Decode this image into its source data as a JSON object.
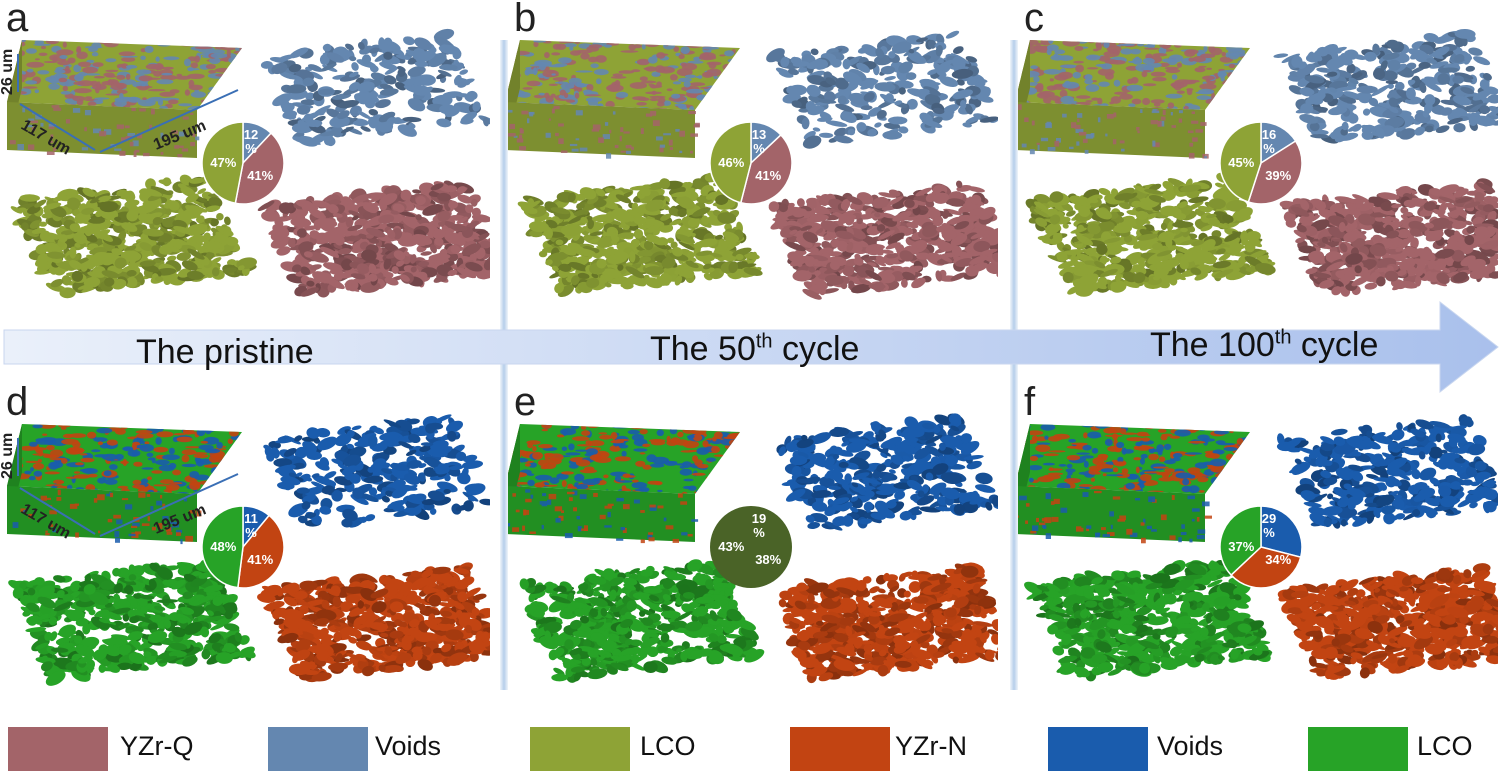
{
  "panels": [
    {
      "letter": "a",
      "void_pct": "12\n%",
      "yzr_pct": "41%",
      "lco_pct": "47%",
      "void_frac": 0.12,
      "yzr_frac": 0.41,
      "lco_frac": 0.47,
      "set": "Q",
      "dims": {
        "depth": "26 um",
        "width": "117 um",
        "length": "195 um"
      }
    },
    {
      "letter": "b",
      "void_pct": "13\n%",
      "yzr_pct": "41%",
      "lco_pct": "46%",
      "void_frac": 0.13,
      "yzr_frac": 0.41,
      "lco_frac": 0.46,
      "set": "Q"
    },
    {
      "letter": "c",
      "void_pct": "16\n%",
      "yzr_pct": "39%",
      "lco_pct": "45%",
      "void_frac": 0.16,
      "yzr_frac": 0.39,
      "lco_frac": 0.45,
      "set": "Q"
    },
    {
      "letter": "d",
      "void_pct": "11\n%",
      "yzr_pct": "41%",
      "lco_pct": "48%",
      "void_frac": 0.11,
      "yzr_frac": 0.41,
      "lco_frac": 0.48,
      "set": "N",
      "dims": {
        "depth": "26 um",
        "width": "117 um",
        "length": "195 um"
      }
    },
    {
      "letter": "e",
      "void_pct": "19\n%",
      "yzr_pct": "38%",
      "lco_pct": "43%",
      "void_frac": 0.19,
      "yzr_frac": 0.38,
      "lco_frac": 0.43,
      "set": "N",
      "solid": true
    },
    {
      "letter": "f",
      "void_pct": "29\n%",
      "yzr_pct": "34%",
      "lco_pct": "37%",
      "void_frac": 0.29,
      "yzr_frac": 0.34,
      "lco_frac": 0.37,
      "set": "N"
    }
  ],
  "arrow": {
    "pristine": "The pristine",
    "cycle50_pre": "The 50",
    "cycle50_sup": "th",
    "cycle50_post": " cycle",
    "cycle100_pre": "The 100",
    "cycle100_sup": "th",
    "cycle100_post": " cycle"
  },
  "legend": [
    {
      "label": "YZr-Q",
      "color": "#a36469"
    },
    {
      "label": "Voids",
      "color": "#6487b0"
    },
    {
      "label": "LCO",
      "color": "#8ea336"
    },
    {
      "label": "YZr-N",
      "color": "#c24412"
    },
    {
      "label": "Voids",
      "color": "#1a5cad"
    },
    {
      "label": "LCO",
      "color": "#27a327"
    }
  ],
  "colors": {
    "Q": {
      "yzr": "#a36469",
      "void": "#6487b0",
      "lco": "#8ea336"
    },
    "N": {
      "yzr": "#c24412",
      "void": "#1a5cad",
      "lco": "#27a327"
    },
    "solid_pie": "#4a6327"
  }
}
